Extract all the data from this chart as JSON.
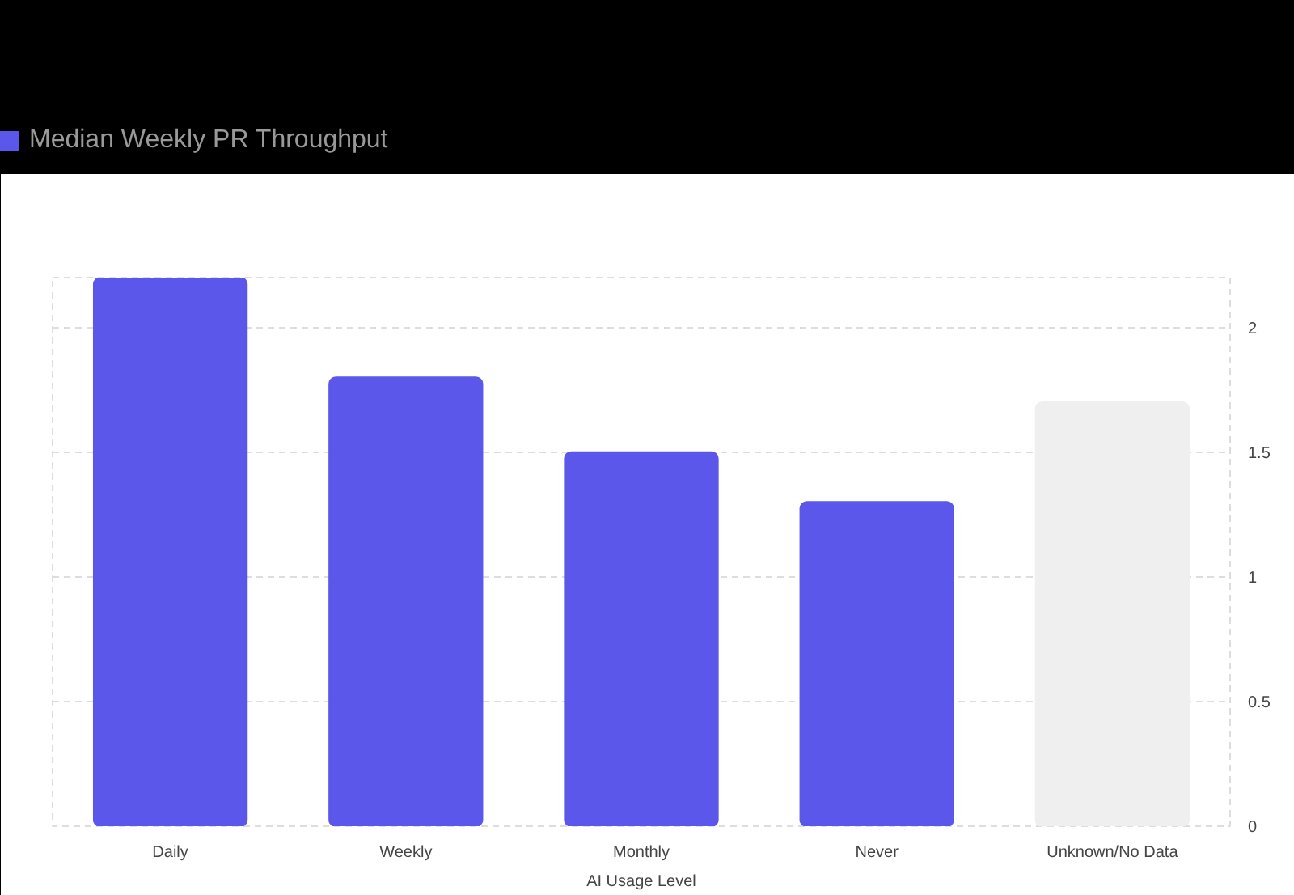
{
  "chart_data": {
    "type": "bar",
    "xlabel": "AI Usage Level",
    "categories": [
      "Daily",
      "Weekly",
      "Monthly",
      "Never",
      "Unknown/No Data"
    ],
    "series": [
      {
        "name": "Median Weekly PR Throughput",
        "color": "#5b57eb",
        "colors": [
          "#5b57eb",
          "#5b57eb",
          "#5b57eb",
          "#5b57eb",
          "#efefef"
        ],
        "values": [
          2.2,
          1.8,
          1.5,
          1.3,
          1.7
        ]
      }
    ],
    "ylim": [
      0,
      2.2
    ],
    "yticks": [
      0,
      0.5,
      1,
      1.5,
      2
    ],
    "grid": "y",
    "legend": "top left"
  }
}
